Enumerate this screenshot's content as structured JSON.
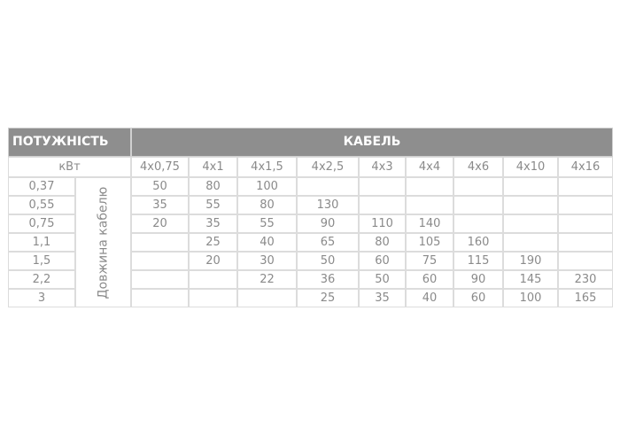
{
  "table": {
    "header_power": "ПОТУЖНІСТЬ",
    "header_cable": "КАБЕЛЬ",
    "unit": "кВт",
    "vertical_label": "Довжина кабелю",
    "columns": [
      "4x0,75",
      "4x1",
      "4x1,5",
      "4x2,5",
      "4x3",
      "4x4",
      "4x6",
      "4x10",
      "4x16"
    ],
    "rows": [
      {
        "power": "0,37",
        "values": [
          "50",
          "80",
          "100",
          "",
          "",
          "",
          "",
          "",
          ""
        ]
      },
      {
        "power": "0,55",
        "values": [
          "35",
          "55",
          "80",
          "130",
          "",
          "",
          "",
          "",
          ""
        ]
      },
      {
        "power": "0,75",
        "values": [
          "20",
          "35",
          "55",
          "90",
          "110",
          "140",
          "",
          "",
          ""
        ]
      },
      {
        "power": "1,1",
        "values": [
          "",
          "25",
          "40",
          "65",
          "80",
          "105",
          "160",
          "",
          ""
        ]
      },
      {
        "power": "1,5",
        "values": [
          "",
          "20",
          "30",
          "50",
          "60",
          "75",
          "115",
          "190",
          ""
        ]
      },
      {
        "power": "2,2",
        "values": [
          "",
          "",
          "22",
          "36",
          "50",
          "60",
          "90",
          "145",
          "230"
        ]
      },
      {
        "power": "3",
        "values": [
          "",
          "",
          "",
          "25",
          "35",
          "40",
          "60",
          "100",
          "165"
        ]
      }
    ]
  }
}
